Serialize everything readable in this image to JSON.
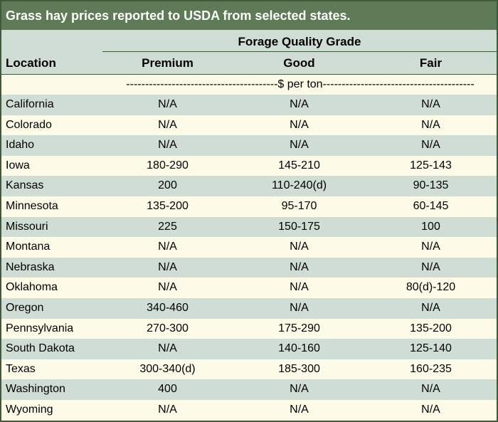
{
  "title": "Grass hay prices reported to USDA from selected states.",
  "header": {
    "location_label": "Location",
    "group_label": "Forage Quality Grade",
    "columns": [
      "Premium",
      "Good",
      "Fair"
    ]
  },
  "unit_label": "----------------------------------------$ per ton----------------------------------------",
  "colors": {
    "title_bg": "#5e7a56",
    "shade": "#cfddd4",
    "light": "#fdfbe8",
    "border": "#3d5a3a"
  },
  "rows": [
    {
      "location": "California",
      "premium": "N/A",
      "good": "N/A",
      "fair": "N/A"
    },
    {
      "location": "Colorado",
      "premium": "N/A",
      "good": "N/A",
      "fair": "N/A"
    },
    {
      "location": "Idaho",
      "premium": "N/A",
      "good": "N/A",
      "fair": "N/A"
    },
    {
      "location": "Iowa",
      "premium": "180-290",
      "good": "145-210",
      "fair": "125-143"
    },
    {
      "location": "Kansas",
      "premium": "200",
      "good": "110-240(d)",
      "fair": "90-135"
    },
    {
      "location": "Minnesota",
      "premium": "135-200",
      "good": "95-170",
      "fair": "60-145"
    },
    {
      "location": "Missouri",
      "premium": "225",
      "good": "150-175",
      "fair": "100"
    },
    {
      "location": "Montana",
      "premium": "N/A",
      "good": "N/A",
      "fair": "N/A"
    },
    {
      "location": "Nebraska",
      "premium": "N/A",
      "good": "N/A",
      "fair": "N/A"
    },
    {
      "location": "Oklahoma",
      "premium": "N/A",
      "good": "N/A",
      "fair": "80(d)-120"
    },
    {
      "location": "Oregon",
      "premium": "340-460",
      "good": "N/A",
      "fair": "N/A"
    },
    {
      "location": "Pennsylvania",
      "premium": "270-300",
      "good": "175-290",
      "fair": "135-200"
    },
    {
      "location": "South Dakota",
      "premium": "N/A",
      "good": "140-160",
      "fair": "125-140"
    },
    {
      "location": "Texas",
      "premium": "300-340(d)",
      "good": "185-300",
      "fair": "160-235"
    },
    {
      "location": "Washington",
      "premium": "400",
      "good": "N/A",
      "fair": "N/A"
    },
    {
      "location": "Wyoming",
      "premium": "N/A",
      "good": "N/A",
      "fair": "N/A"
    }
  ]
}
